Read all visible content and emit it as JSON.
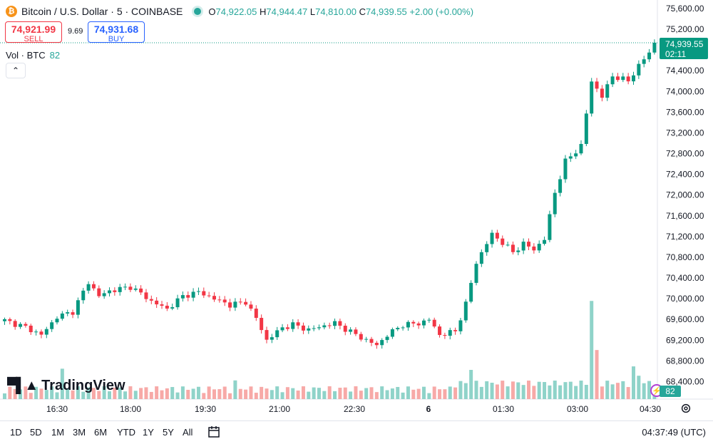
{
  "header": {
    "symbol_title": "Bitcoin / U.S. Dollar · 5 · COINBASE",
    "coin_glyph": "₿",
    "o_label": "O",
    "o_value": "74,922.05",
    "h_label": "H",
    "h_value": "74,944.47",
    "l_label": "L",
    "l_value": "74,810.00",
    "c_label": "C",
    "c_value": "74,939.55",
    "change": "+2.00 (+0.00%)"
  },
  "trade": {
    "sell_price": "74,921.99",
    "sell_label": "SELL",
    "spread": "9.69",
    "buy_price": "74,931.68",
    "buy_label": "BUY"
  },
  "volume": {
    "label": "Vol · BTC",
    "value": "82"
  },
  "price_tag": {
    "price": "74,939.55",
    "countdown": "02:11"
  },
  "branding": "TradingView",
  "bottom": {
    "ranges": [
      "1D",
      "5D",
      "1M",
      "3M",
      "6M",
      "YTD",
      "1Y",
      "5Y",
      "All"
    ],
    "clock": "04:37:49 (UTC)"
  },
  "colors": {
    "up": "#089981",
    "down": "#f23645",
    "up_vol": "#8fd3c9",
    "down_vol": "#f7a9a7"
  },
  "chart_data": {
    "type": "candlestick",
    "y_ticks": [
      "75,600.00",
      "75,200.00",
      "74,800.00",
      "74,400.00",
      "74,000.00",
      "73,600.00",
      "73,200.00",
      "72,800.00",
      "72,400.00",
      "72,000.00",
      "71,600.00",
      "71,200.00",
      "70,800.00",
      "70,400.00",
      "70,000.00",
      "69,600.00",
      "69,200.00",
      "68,800.00",
      "68,400.00"
    ],
    "x_ticks": [
      "16:30",
      "18:00",
      "19:30",
      "21:00",
      "22:30",
      "6",
      "01:30",
      "03:00",
      "04:30"
    ],
    "ylim": [
      68300,
      75700
    ],
    "anchors": [
      [
        0,
        69580
      ],
      [
        4,
        69450
      ],
      [
        7,
        69300
      ],
      [
        10,
        69650
      ],
      [
        13,
        69750
      ],
      [
        16,
        70320
      ],
      [
        18,
        70050
      ],
      [
        20,
        70150
      ],
      [
        24,
        70230
      ],
      [
        26,
        70100
      ],
      [
        28,
        69950
      ],
      [
        31,
        69800
      ],
      [
        34,
        70050
      ],
      [
        37,
        70130
      ],
      [
        40,
        70000
      ],
      [
        43,
        69880
      ],
      [
        46,
        69940
      ],
      [
        48,
        69620
      ],
      [
        50,
        69200
      ],
      [
        53,
        69440
      ],
      [
        55,
        69500
      ],
      [
        58,
        69400
      ],
      [
        61,
        69480
      ],
      [
        63,
        69530
      ],
      [
        66,
        69360
      ],
      [
        69,
        69200
      ],
      [
        71,
        69100
      ],
      [
        73,
        69300
      ],
      [
        76,
        69500
      ],
      [
        79,
        69520
      ],
      [
        81,
        69600
      ],
      [
        83,
        69300
      ],
      [
        86,
        69370
      ],
      [
        88,
        69900
      ],
      [
        90,
        70700
      ],
      [
        93,
        71250
      ],
      [
        95,
        71080
      ],
      [
        97,
        70900
      ],
      [
        99,
        71060
      ],
      [
        101,
        70950
      ],
      [
        103,
        71150
      ],
      [
        105,
        72050
      ],
      [
        107,
        72650
      ],
      [
        110,
        72950
      ],
      [
        112,
        74200
      ],
      [
        114,
        73900
      ],
      [
        116,
        74300
      ],
      [
        119,
        74200
      ],
      [
        121,
        74500
      ],
      [
        123,
        74750
      ],
      [
        124,
        74920
      ]
    ],
    "n_candles": 125,
    "volume_spikes": {
      "11": 26,
      "44": 16,
      "89": 25,
      "112": 84,
      "113": 42,
      "120": 28,
      "121": 20
    }
  }
}
